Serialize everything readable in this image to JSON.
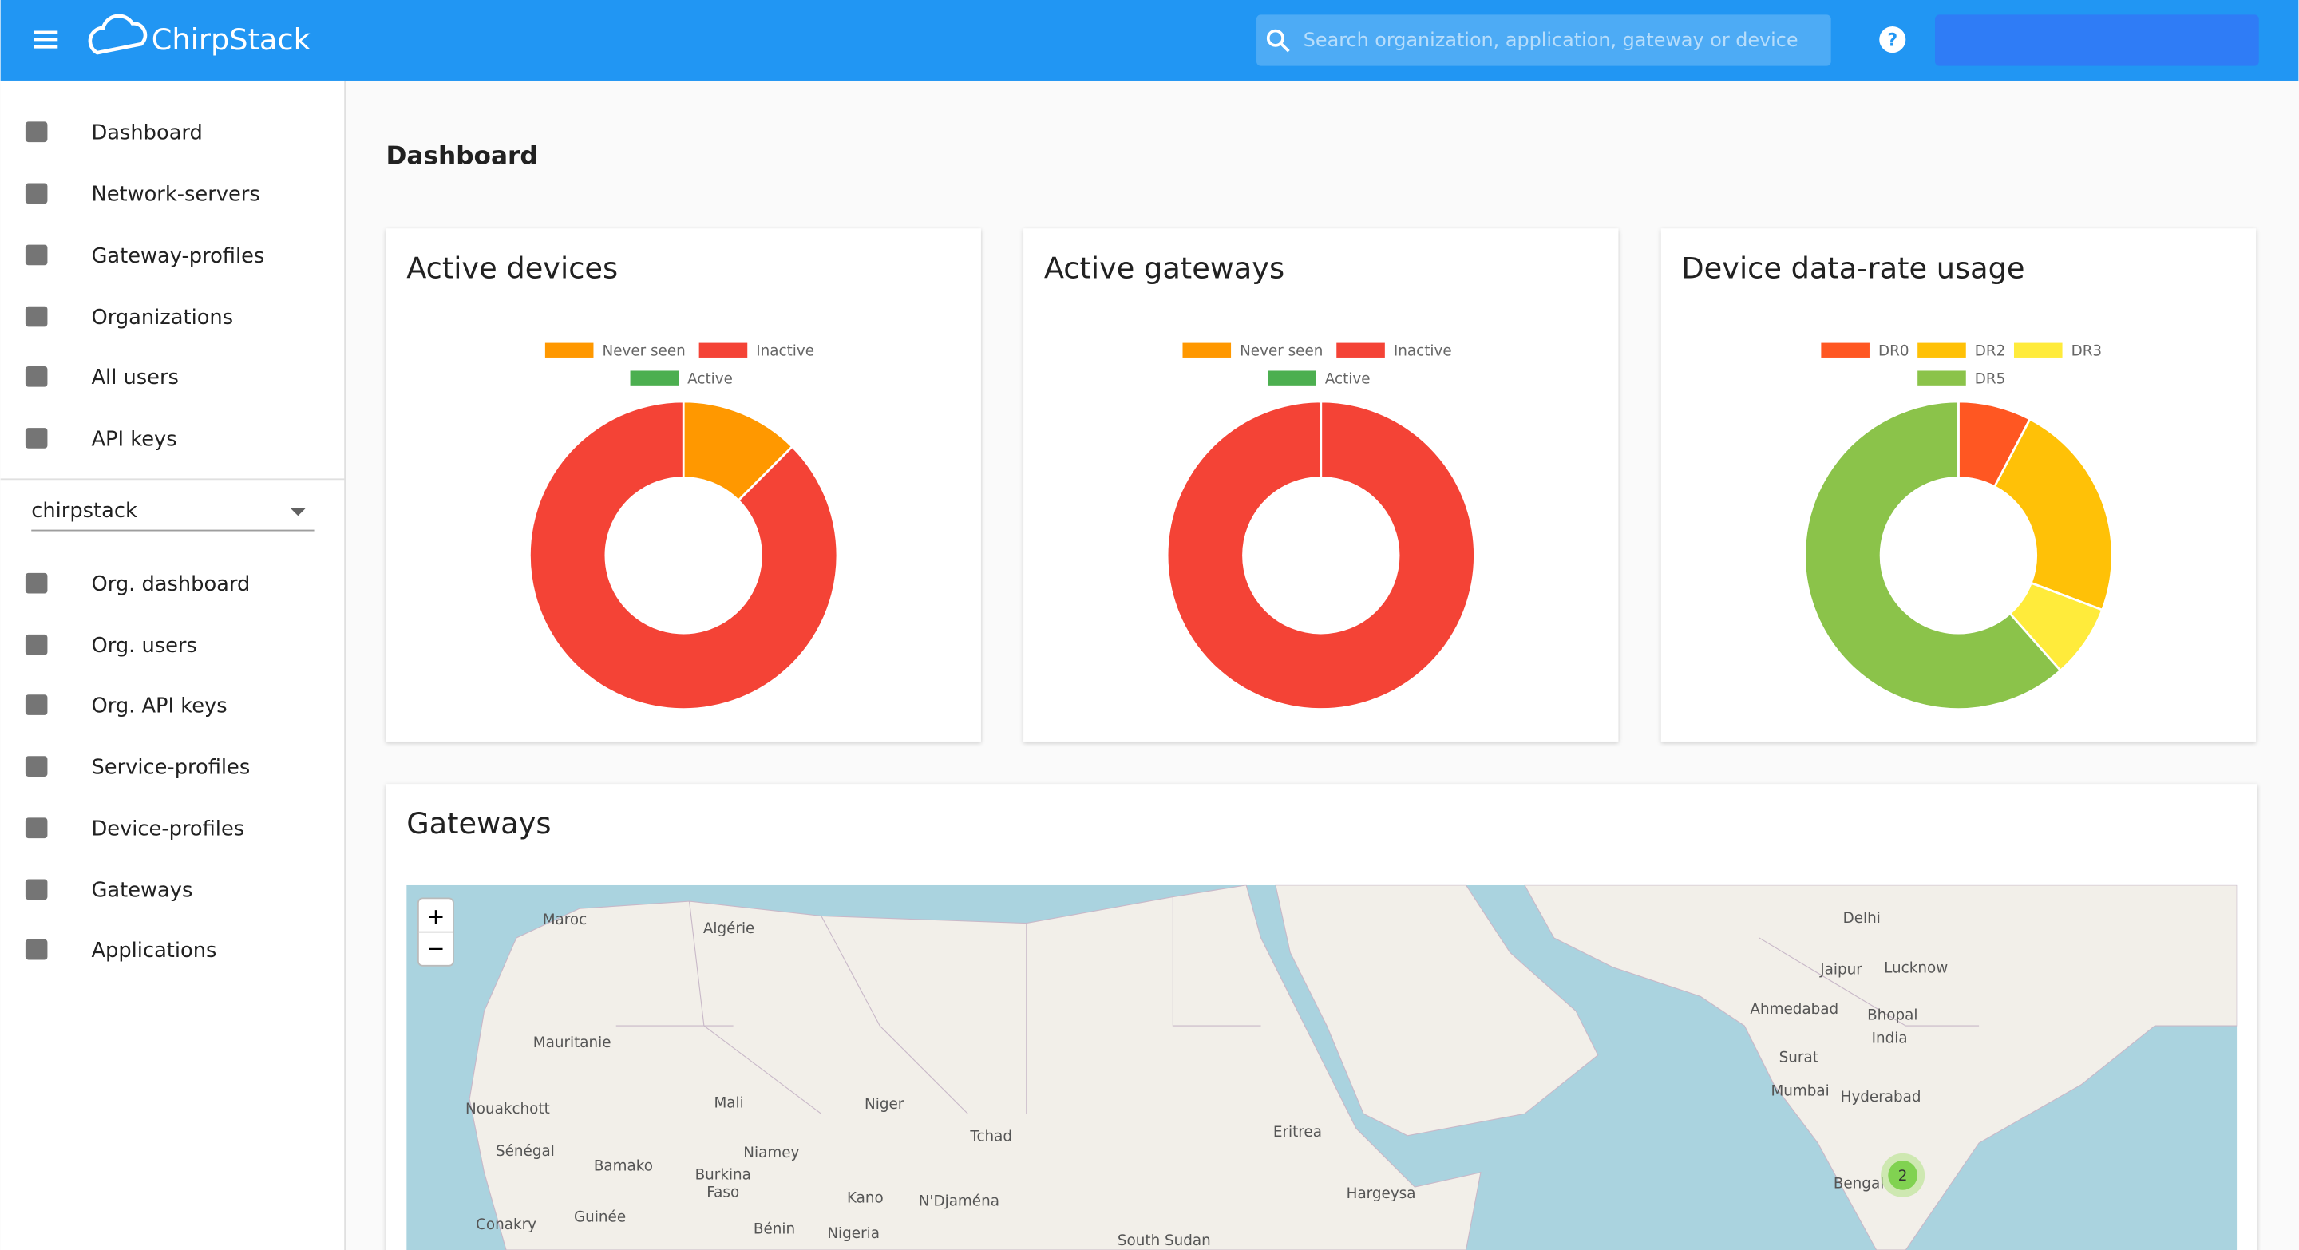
{
  "header": {
    "brand": "ChirpStack",
    "search_placeholder": "Search organization, application, gateway or device",
    "help": "?"
  },
  "sidebar": {
    "admin_items": [
      "Dashboard",
      "Network-servers",
      "Gateway-profiles",
      "Organizations",
      "All users",
      "API keys"
    ],
    "organization": "chirpstack",
    "org_items": [
      "Org. dashboard",
      "Org. users",
      "Org. API keys",
      "Service-profiles",
      "Device-profiles",
      "Gateways",
      "Applications"
    ]
  },
  "page": {
    "title": "Dashboard"
  },
  "chart_data": [
    {
      "type": "pie",
      "title": "Active devices",
      "donut": true,
      "categories": [
        "Never seen",
        "Inactive",
        "Active"
      ],
      "values": [
        1,
        7,
        0
      ],
      "colors": [
        "#ff9800",
        "#f44336",
        "#4caf50"
      ]
    },
    {
      "type": "pie",
      "title": "Active gateways",
      "donut": true,
      "categories": [
        "Never seen",
        "Inactive",
        "Active"
      ],
      "values": [
        0,
        1,
        0
      ],
      "colors": [
        "#ff9800",
        "#f44336",
        "#4caf50"
      ]
    },
    {
      "type": "pie",
      "title": "Device data-rate usage",
      "donut": true,
      "categories": [
        "DR0",
        "DR2",
        "DR3",
        "DR5"
      ],
      "values": [
        1,
        3,
        1,
        8
      ],
      "colors": [
        "#ff5722",
        "#ffc107",
        "#ffeb3b",
        "#8bc34a"
      ]
    }
  ],
  "map": {
    "title": "Gateways",
    "zoom_in": "+",
    "zoom_out": "−",
    "cluster": "2",
    "labels": [
      "Maroc",
      "Algérie",
      "Mauritanie",
      "Nouakchott",
      "Sénégal",
      "Mali",
      "Niger",
      "Tchad",
      "Bamako",
      "Burkina",
      "Faso",
      "Niamey",
      "Kano",
      "N'Djaména",
      "Conakry",
      "Guinée",
      "Bénin",
      "Nigeria",
      "Eritrea",
      "Hargeysa",
      "South Sudan",
      "Delhi",
      "Jaipur",
      "Lucknow",
      "Ahmedabad",
      "Bhopal",
      "India",
      "Surat",
      "Mumbai",
      "Hyderabad",
      "Bengal"
    ]
  }
}
